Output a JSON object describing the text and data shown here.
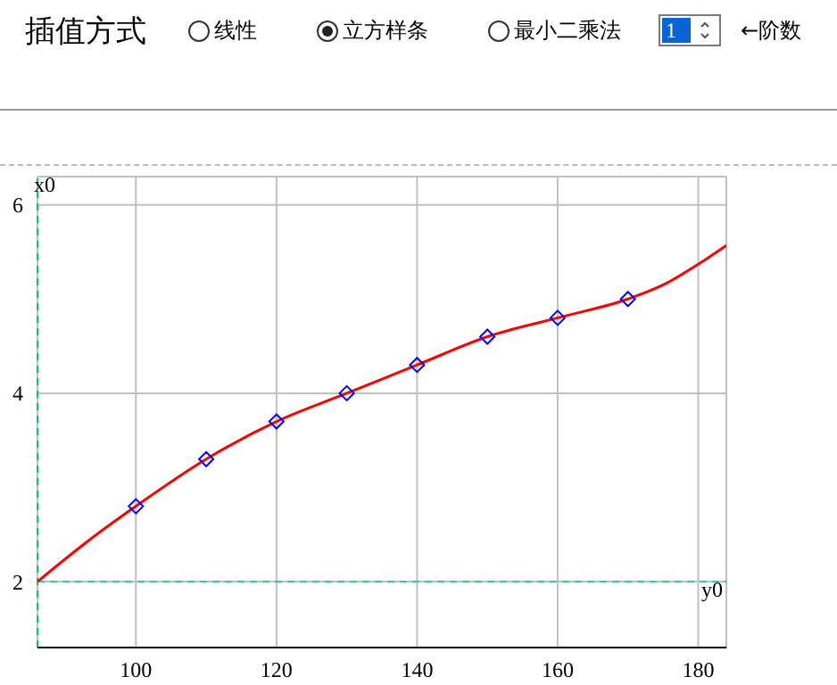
{
  "chart_data": {
    "type": "line",
    "title": "插值方式",
    "annotations": [
      "线性",
      "立方样条",
      "最小二乘法",
      "1",
      "←阶数"
    ],
    "xlim": [
      86,
      184
    ],
    "xticks": [
      100,
      120,
      140,
      160,
      180
    ],
    "ylim": [
      1.3,
      6.3
    ],
    "yticks": [
      2,
      4,
      6
    ],
    "grid": true,
    "ref_lines": [
      {
        "axis": "x",
        "value": 86,
        "label": "x0",
        "color": "#00cc66",
        "line_style": "dashed"
      },
      {
        "axis": "y",
        "value": 2,
        "label": "y0",
        "color": "#33cc99",
        "line_style": "dashed"
      }
    ],
    "series": [
      {
        "color": "#ff0000",
        "marker": "none",
        "x": [
          86,
          93,
          100,
          110,
          120,
          130,
          140,
          150,
          160,
          170,
          175,
          180,
          184
        ],
        "values": [
          2.0,
          2.42,
          2.8,
          3.3,
          3.7,
          4.0,
          4.3,
          4.6,
          4.8,
          5.0,
          5.15,
          5.37,
          5.57
        ]
      },
      {
        "type": "scatter",
        "color": "#0000ff",
        "marker": "diamond",
        "x": [
          100,
          110,
          120,
          130,
          140,
          150,
          160,
          170
        ],
        "values": [
          2.8,
          3.3,
          3.7,
          4.0,
          4.3,
          4.6,
          4.8,
          5.0
        ]
      }
    ]
  }
}
